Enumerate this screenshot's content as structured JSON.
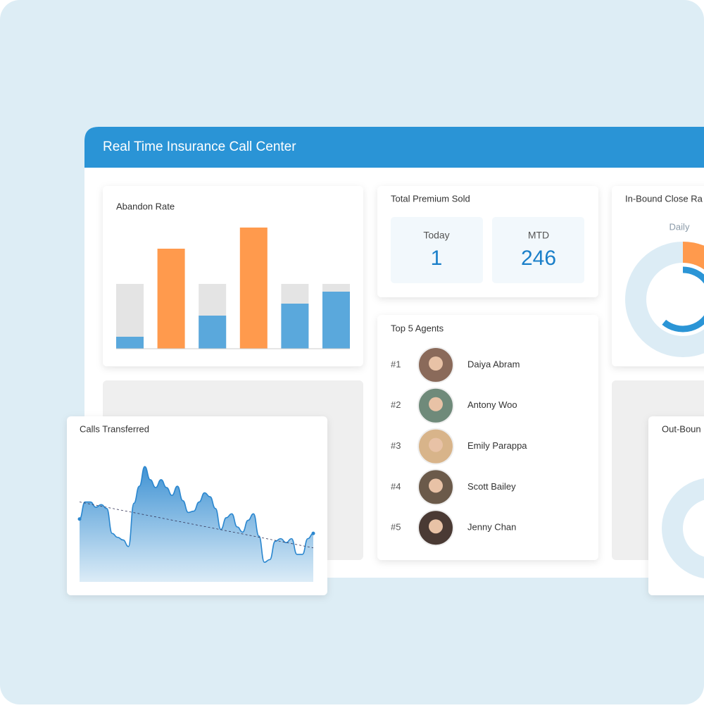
{
  "header": {
    "title": "Real Time Insurance Call Center"
  },
  "abandon_rate": {
    "title": "Abandon Rate",
    "chart_data": {
      "type": "bar",
      "ylim": [
        0,
        180
      ],
      "values": [
        17,
        142,
        47,
        172,
        64,
        81
      ],
      "colors": [
        "#5aa8dc",
        "#ff9a4d",
        "#5aa8dc",
        "#ff9a4d",
        "#5aa8dc",
        "#5aa8dc"
      ],
      "track": [
        92,
        null,
        92,
        null,
        92,
        92
      ],
      "track_color": "#e4e4e4"
    }
  },
  "total_premium": {
    "title": "Total Premium Sold",
    "today": {
      "label": "Today",
      "value": 1
    },
    "mtd": {
      "label": "MTD",
      "value": 246
    }
  },
  "top_agents": {
    "title": "Top 5 Agents",
    "agents": [
      {
        "rank": "#1",
        "name": "Daiya Abram"
      },
      {
        "rank": "#2",
        "name": "Antony Woo"
      },
      {
        "rank": "#3",
        "name": "Emily Parappa"
      },
      {
        "rank": "#4",
        "name": "Scott Bailey"
      },
      {
        "rank": "#5",
        "name": "Jenny Chan"
      }
    ]
  },
  "inbound": {
    "title": "In-Bound Close Ra",
    "subtitle": "Daily",
    "chart_data": {
      "type": "donut",
      "range": [
        0,
        100
      ],
      "series": [
        {
          "color": "#ff9a4d",
          "values": [
            25
          ]
        },
        {
          "color": "#2b95d6",
          "values": [
            61
          ]
        }
      ]
    }
  },
  "calls_transferred": {
    "title": "Calls Transferred",
    "chart_data": {
      "type": "area",
      "ylim": [
        0,
        100
      ],
      "color": "#2b87cf",
      "values": [
        48,
        61,
        61,
        57,
        59,
        56,
        37,
        34,
        32,
        27,
        60,
        73,
        88,
        78,
        72,
        78,
        72,
        66,
        73,
        62,
        53,
        54,
        61,
        68,
        65,
        56,
        40,
        49,
        52,
        42,
        38,
        47,
        52,
        35,
        15,
        17,
        31,
        33,
        30,
        33,
        21,
        21,
        33,
        37
      ],
      "trend": [
        61,
        26
      ]
    }
  },
  "outbound": {
    "title": "Out-Boun"
  }
}
